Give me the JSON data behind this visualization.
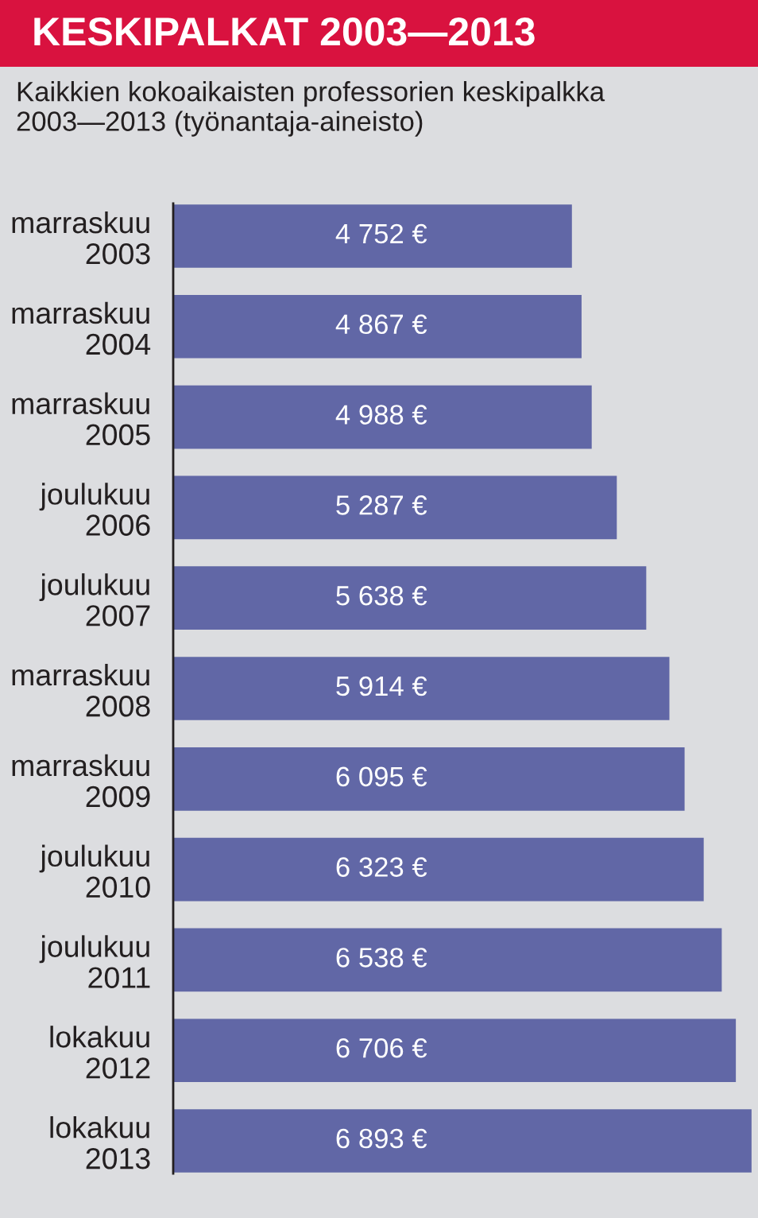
{
  "chart_data": {
    "type": "bar",
    "orientation": "horizontal",
    "title": "KESKIPALKAT 2003—2013",
    "subtitle": "Kaikkien kokoaikaisten professorien keskipalkka 2003—2013 (työnantaja-aineisto)",
    "categories": [
      "marraskuu 2003",
      "marraskuu 2004",
      "marraskuu 2005",
      "joulukuu 2006",
      "joulukuu 2007",
      "marraskuu 2008",
      "marraskuu 2009",
      "joulukuu 2010",
      "joulukuu 2011",
      "lokakuu 2012",
      "lokakuu 2013"
    ],
    "values": [
      4752,
      4867,
      4988,
      5287,
      5638,
      5914,
      6095,
      6323,
      6538,
      6706,
      6893
    ],
    "value_labels": [
      "4 752 €",
      "4 867 €",
      "4 988 €",
      "5 287 €",
      "5 638 €",
      "5 914 €",
      "6 095 €",
      "6 323 €",
      "6 538 €",
      "6 706 €",
      "6 893 €"
    ],
    "color": "#6167a6",
    "xlim": [
      0,
      6970
    ],
    "tick_labels": "y"
  }
}
